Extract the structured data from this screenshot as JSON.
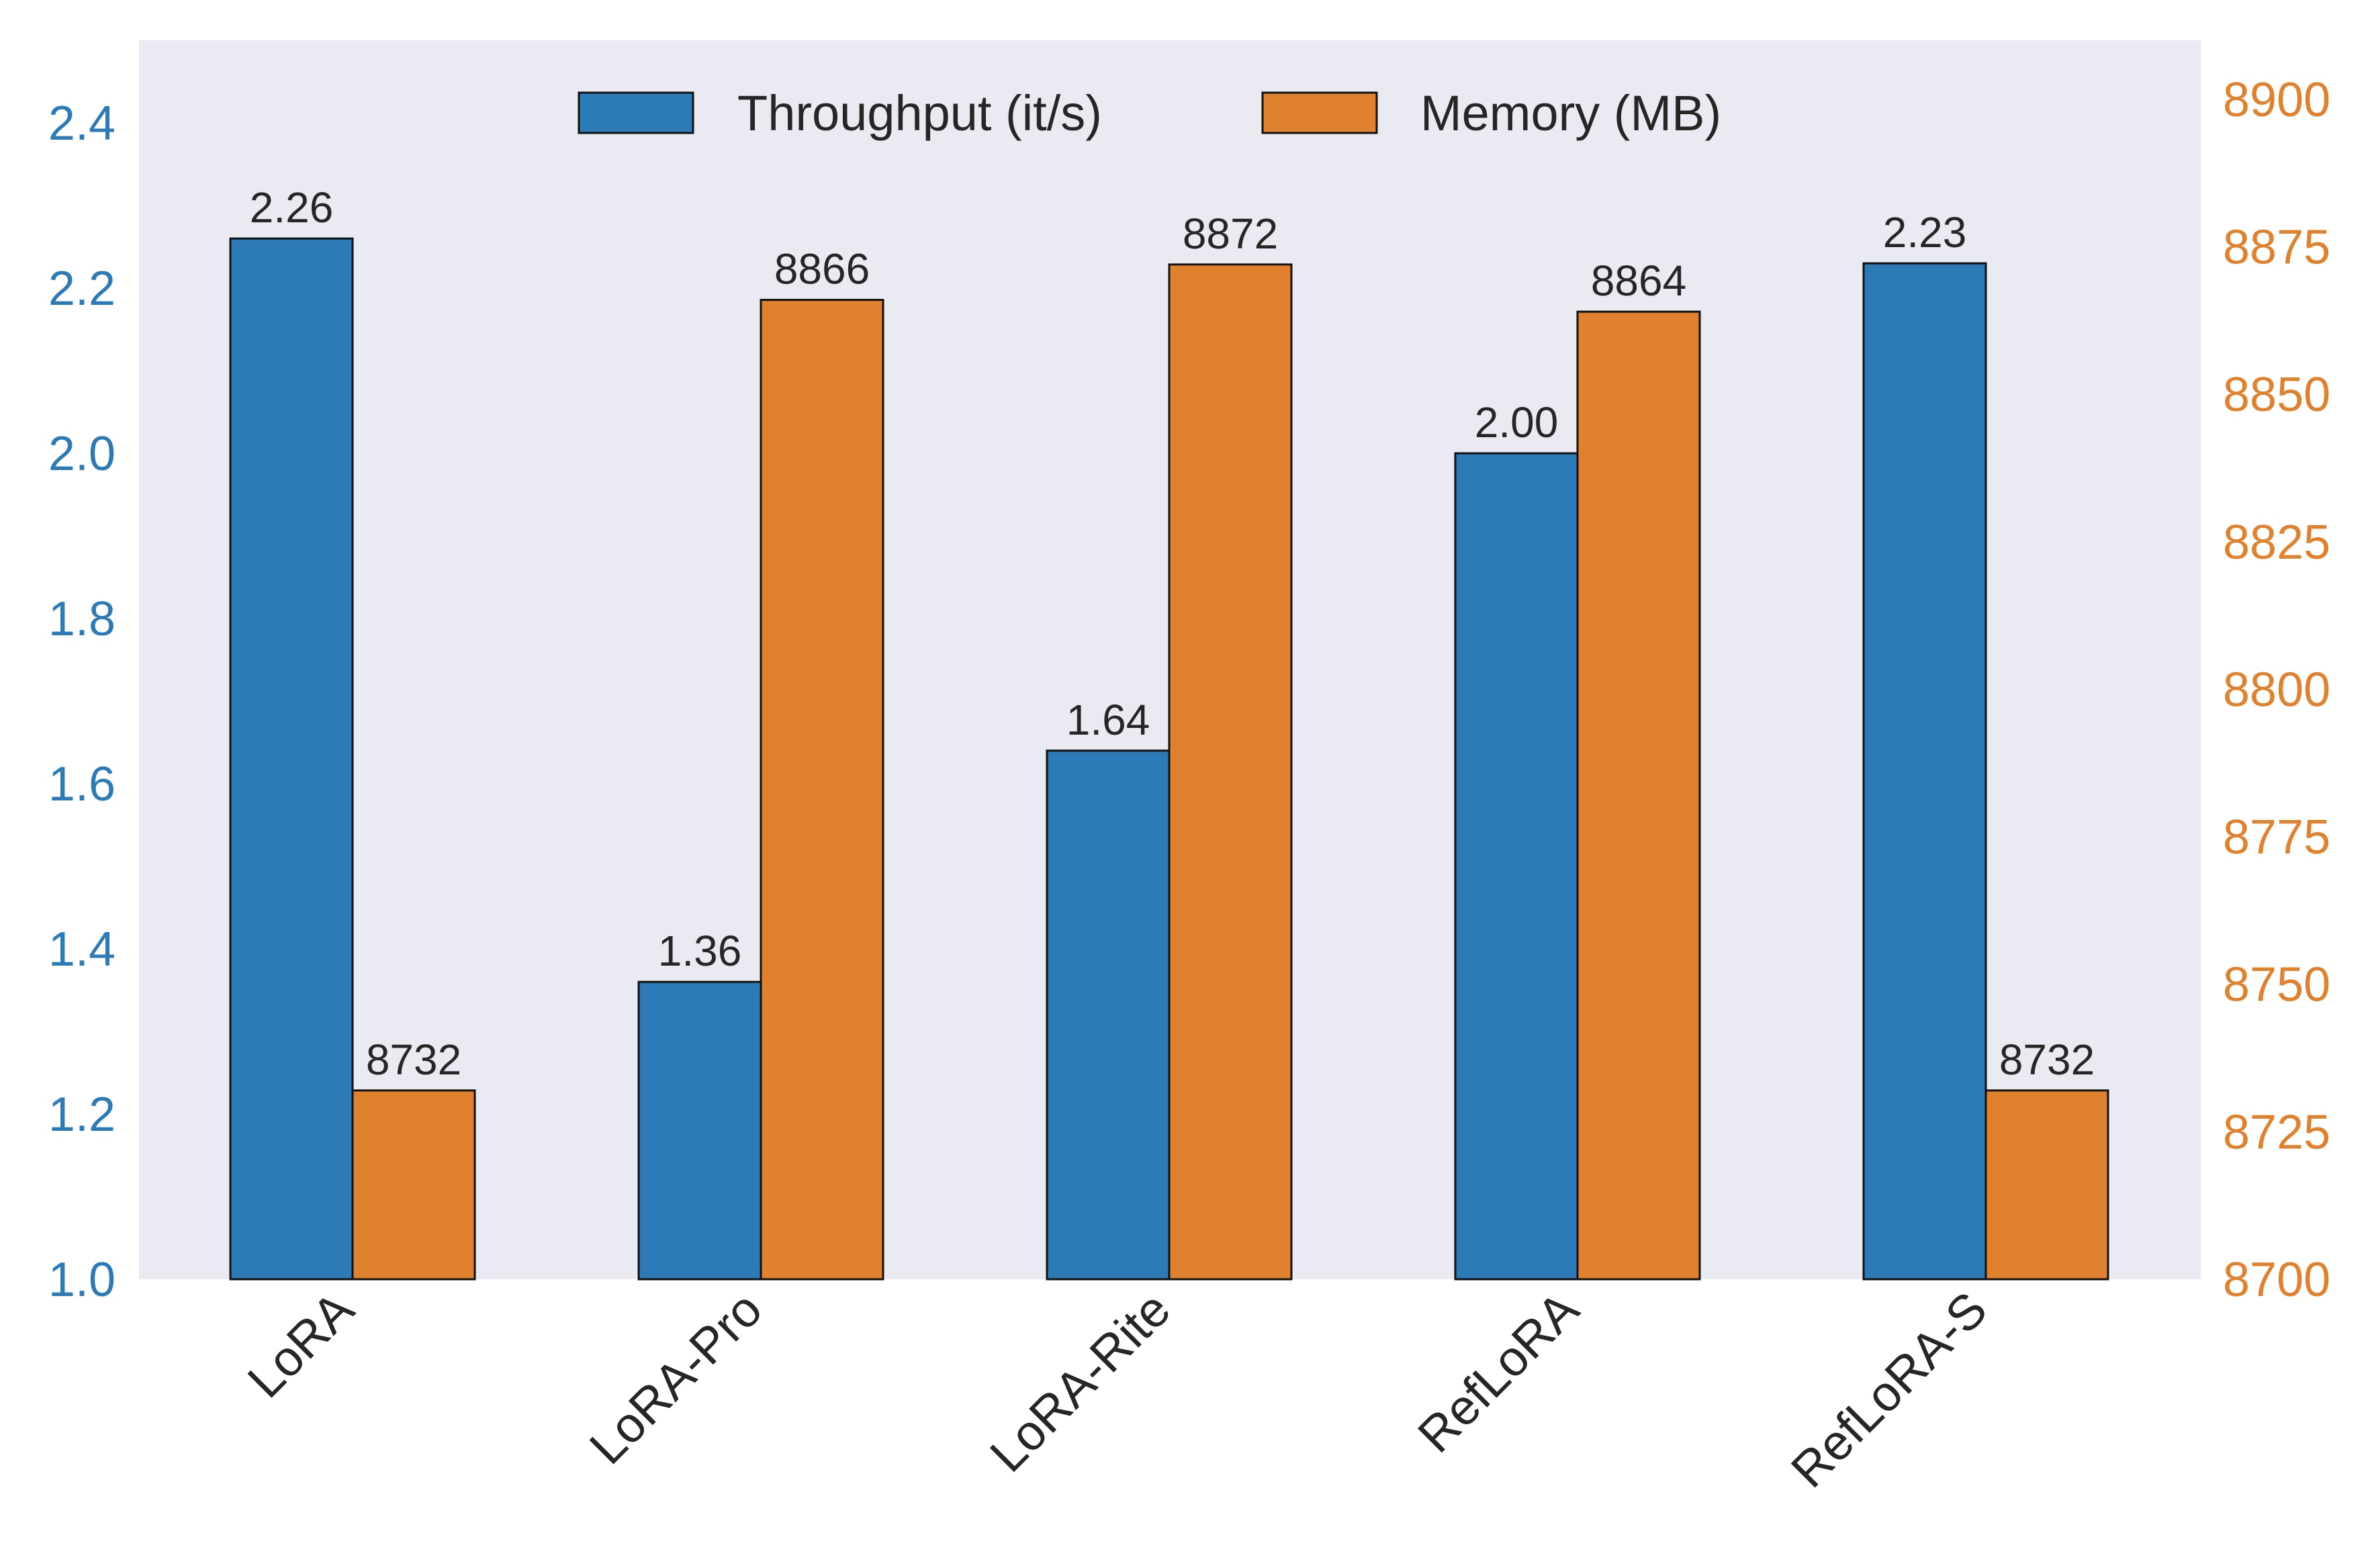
{
  "chart_data": {
    "type": "bar",
    "categories": [
      "LoRA",
      "LoRA-Pro",
      "LoRA-Rite",
      "RefLoRA",
      "RefLoRA-S"
    ],
    "series": [
      {
        "name": "Throughput (it/s)",
        "axis": "left",
        "color": "#2c7bb6",
        "values": [
          2.26,
          1.36,
          1.64,
          2.0,
          2.23
        ],
        "labels": [
          "2.26",
          "1.36",
          "1.64",
          "2.00",
          "2.23"
        ]
      },
      {
        "name": "Memory (MB)",
        "axis": "right",
        "color": "#e0812e",
        "values": [
          8732,
          8866,
          8872,
          8864,
          8732
        ],
        "labels": [
          "8732",
          "8866",
          "8872",
          "8864",
          "8732"
        ]
      }
    ],
    "y_left": {
      "ylim": [
        1.0,
        2.5
      ],
      "ticks": [
        1.0,
        1.2,
        1.4,
        1.6,
        1.8,
        2.0,
        2.2,
        2.4
      ],
      "tick_labels": [
        "1.0",
        "1.2",
        "1.4",
        "1.6",
        "1.8",
        "2.0",
        "2.2",
        "2.4"
      ],
      "color": "#2c7bb6"
    },
    "y_right": {
      "ylim": [
        8700,
        8910
      ],
      "ticks": [
        8700,
        8725,
        8750,
        8775,
        8800,
        8825,
        8850,
        8875,
        8900
      ],
      "tick_labels": [
        "8700",
        "8725",
        "8750",
        "8775",
        "8800",
        "8825",
        "8850",
        "8875",
        "8900"
      ],
      "color": "#e0812e"
    },
    "title": "",
    "xlabel": "",
    "ylabel": "",
    "grid": false,
    "legend_position": "top-center",
    "plot_background": "#eaeaf2"
  }
}
